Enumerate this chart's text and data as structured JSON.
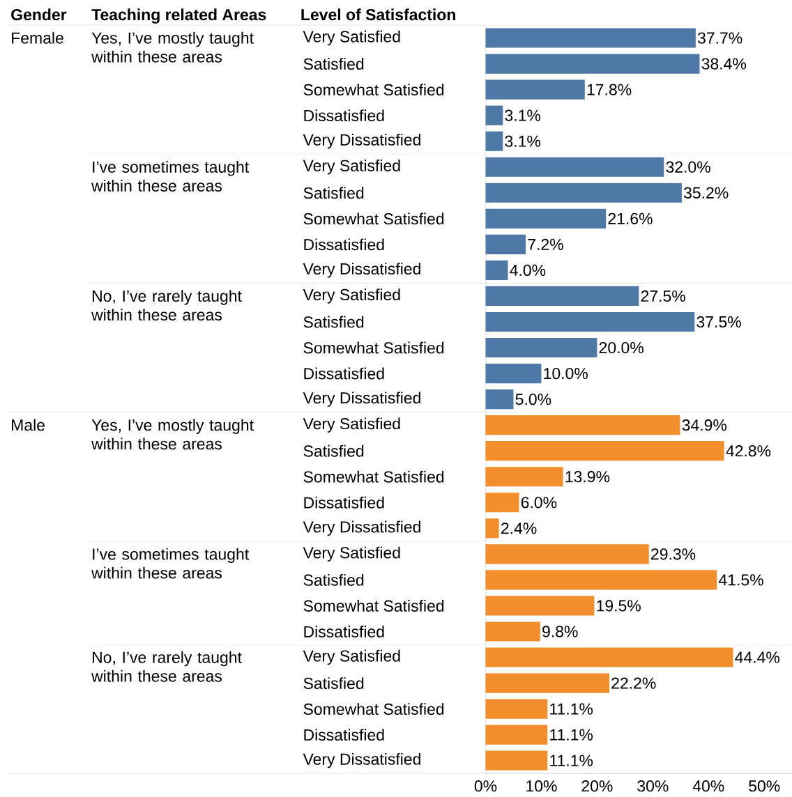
{
  "chart_data": {
    "type": "bar",
    "orientation": "horizontal",
    "categories": [
      "Very Satisfied",
      "Satisfied",
      "Somewhat Satisfied",
      "Dissatisfied",
      "Very Dissatisfied",
      "Very Satisfied",
      "Satisfied",
      "Somewhat Satisfied",
      "Dissatisfied",
      "Very Dissatisfied",
      "Very Satisfied",
      "Satisfied",
      "Somewhat Satisfied",
      "Dissatisfied",
      "Very Dissatisfied",
      "Very Satisfied",
      "Satisfied",
      "Somewhat Satisfied",
      "Dissatisfied",
      "Very Dissatisfied",
      "Very Satisfied",
      "Satisfied",
      "Somewhat Satisfied",
      "Dissatisfied",
      "Very Satisfied",
      "Satisfied",
      "Somewhat Satisfied",
      "Dissatisfied",
      "Very Dissatisfied"
    ],
    "values": [
      37.7,
      38.4,
      17.8,
      3.1,
      3.1,
      32.0,
      35.2,
      21.6,
      7.2,
      4.0,
      27.5,
      37.5,
      20.0,
      10.0,
      5.0,
      34.9,
      42.8,
      13.9,
      6.0,
      2.4,
      29.3,
      41.5,
      19.5,
      9.8,
      44.4,
      22.2,
      11.1,
      11.1,
      11.1
    ],
    "value_labels": [
      "37.7%",
      "38.4%",
      "17.8%",
      "3.1%",
      "3.1%",
      "32.0%",
      "35.2%",
      "21.6%",
      "7.2%",
      "4.0%",
      "27.5%",
      "37.5%",
      "20.0%",
      "10.0%",
      "5.0%",
      "34.9%",
      "42.8%",
      "13.9%",
      "6.0%",
      "2.4%",
      "29.3%",
      "41.5%",
      "19.5%",
      "9.8%",
      "44.4%",
      "22.2%",
      "11.1%",
      "11.1%",
      "11.1%"
    ],
    "colors": [
      "#4e79a7",
      "#4e79a7",
      "#4e79a7",
      "#4e79a7",
      "#4e79a7",
      "#4e79a7",
      "#4e79a7",
      "#4e79a7",
      "#4e79a7",
      "#4e79a7",
      "#4e79a7",
      "#4e79a7",
      "#4e79a7",
      "#4e79a7",
      "#4e79a7",
      "#f28e2b",
      "#f28e2b",
      "#f28e2b",
      "#f28e2b",
      "#f28e2b",
      "#f28e2b",
      "#f28e2b",
      "#f28e2b",
      "#f28e2b",
      "#f28e2b",
      "#f28e2b",
      "#f28e2b",
      "#f28e2b",
      "#f28e2b"
    ],
    "xlim": [
      0,
      55
    ],
    "xticks": [
      {
        "value": 0,
        "label": "0%"
      },
      {
        "value": 10,
        "label": "10%"
      },
      {
        "value": 20,
        "label": "20%"
      },
      {
        "value": 30,
        "label": "30%"
      },
      {
        "value": 40,
        "label": "40%"
      },
      {
        "value": 50,
        "label": "50%"
      }
    ],
    "annotations": [
      "Gender",
      "Teaching related Areas",
      "Level of Satisfaction",
      "Female",
      "Yes, I’ve mostly taught within these areas",
      "I’ve sometimes taught within these areas",
      "No, I’ve rarely taught within these areas",
      "Male",
      "Yes, I’ve mostly taught within these areas",
      "I’ve sometimes taught within these areas",
      "No, I’ve rarely taught within these areas"
    ]
  }
}
